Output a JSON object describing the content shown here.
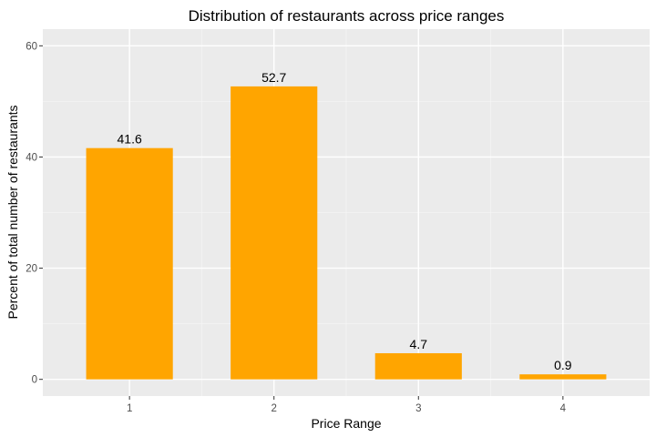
{
  "chart_data": {
    "type": "bar",
    "title": "Distribution of restaurants across price ranges",
    "xlabel": "Price Range",
    "ylabel": "Percent of total number of restaurants",
    "categories": [
      "1",
      "2",
      "3",
      "4"
    ],
    "values": [
      41.6,
      52.7,
      4.7,
      0.9
    ],
    "data_labels": [
      "41.6",
      "52.7",
      "4.7",
      "0.9"
    ],
    "ylim": [
      -3,
      63
    ],
    "yticks": [
      0,
      20,
      40,
      60
    ],
    "yticks_minor": [
      10,
      30,
      50
    ],
    "grid": true,
    "legend": "none",
    "colors": {
      "bar": "#FFA500",
      "panel_background": "#EBEBEB",
      "grid_major": "#FFFFFF",
      "grid_minor": "#F5F5F5"
    }
  }
}
